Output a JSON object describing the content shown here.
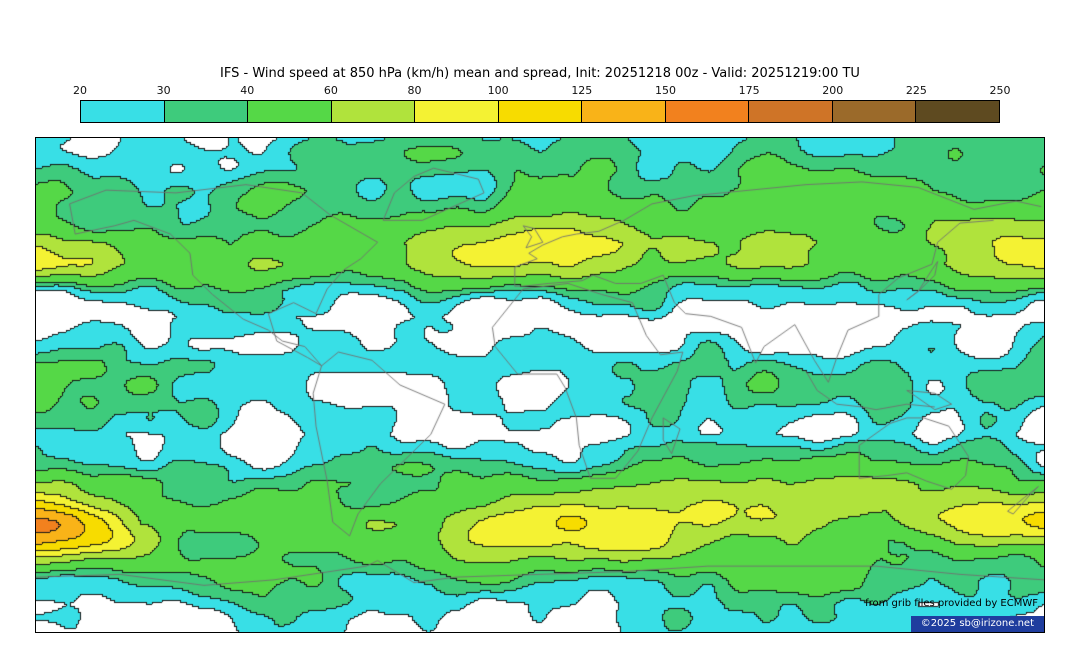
{
  "chart": {
    "title": "IFS - Wind speed at 850 hPa (km/h) mean and spread, Init: 20251218 00z - Valid: 20251219:00 TU"
  },
  "credits": {
    "source": "from grib files provided by ECMWF",
    "copyright": "©2025 sb@irizone.net"
  },
  "chart_data": {
    "type": "heatmap",
    "title": "IFS - Wind speed at 850 hPa (km/h) mean and spread, Init: 20251218 00z - Valid: 20251219:00 TU",
    "model": "IFS",
    "variable": "Wind speed at 850 hPa",
    "units": "km/h",
    "statistic": "mean and spread",
    "init": "20251218 00z",
    "valid": "20251219:00 TU",
    "projection": "equirectangular",
    "legend_position": "top",
    "levels": [
      20,
      30,
      40,
      60,
      80,
      100,
      125,
      150,
      175,
      200,
      225,
      250
    ],
    "colors": [
      "#38dfe6",
      "#3ecb7c",
      "#55d847",
      "#b0e33c",
      "#f4f233",
      "#f7dc00",
      "#f9b318",
      "#f2811e",
      "#cf7427",
      "#9b6a2a",
      "#5e4a20"
    ],
    "below_min_color": "#ffffff",
    "contour_color": "#161616",
    "coastline_color": "#707070",
    "approx_zonal_mean_by_lat": [
      [
        90,
        24
      ],
      [
        76,
        32
      ],
      [
        62,
        42
      ],
      [
        52,
        56
      ],
      [
        44,
        54
      ],
      [
        34,
        26
      ],
      [
        25,
        15
      ],
      [
        16,
        22
      ],
      [
        8,
        30
      ],
      [
        0,
        31
      ],
      [
        -8,
        27
      ],
      [
        -18,
        18
      ],
      [
        -27,
        32
      ],
      [
        -36,
        52
      ],
      [
        -48,
        62
      ],
      [
        -60,
        50
      ],
      [
        -70,
        36
      ],
      [
        -80,
        24
      ],
      [
        -90,
        20
      ]
    ],
    "coastlines": [
      [
        [
          -168,
          66
        ],
        [
          -155,
          71
        ],
        [
          -130,
          70
        ],
        [
          -105,
          73
        ],
        [
          -85,
          70
        ],
        [
          -75,
          62
        ],
        [
          -58,
          52
        ],
        [
          -64,
          46
        ],
        [
          -70,
          42
        ],
        [
          -76,
          35
        ],
        [
          -80,
          26
        ],
        [
          -88,
          30
        ],
        [
          -97,
          26
        ],
        [
          -94,
          16
        ],
        [
          -83,
          10
        ],
        [
          -78,
          7
        ],
        [
          -84,
          14
        ],
        [
          -92,
          16
        ],
        [
          -97,
          20
        ],
        [
          -106,
          24
        ],
        [
          -117,
          33
        ],
        [
          -124,
          40
        ],
        [
          -125,
          48
        ],
        [
          -132,
          55
        ],
        [
          -145,
          60
        ],
        [
          -152,
          58
        ],
        [
          -166,
          55
        ],
        [
          -168,
          66
        ]
      ],
      [
        [
          -78,
          7
        ],
        [
          -72,
          12
        ],
        [
          -60,
          9
        ],
        [
          -50,
          0
        ],
        [
          -34,
          -7
        ],
        [
          -39,
          -18
        ],
        [
          -48,
          -27
        ],
        [
          -57,
          -36
        ],
        [
          -65,
          -47
        ],
        [
          -68,
          -55
        ],
        [
          -74,
          -50
        ],
        [
          -76,
          -35
        ],
        [
          -80,
          -15
        ],
        [
          -81,
          -3
        ],
        [
          -78,
          7
        ]
      ],
      [
        [
          -56,
          60
        ],
        [
          -52,
          70
        ],
        [
          -45,
          76
        ],
        [
          -38,
          79
        ],
        [
          -22,
          75
        ],
        [
          -20,
          70
        ],
        [
          -42,
          60
        ],
        [
          -56,
          60
        ]
      ],
      [
        [
          -9,
          36
        ],
        [
          -9,
          43
        ],
        [
          -1,
          46
        ],
        [
          -4,
          48
        ],
        [
          1,
          51
        ],
        [
          8,
          54
        ],
        [
          13,
          55
        ],
        [
          21,
          56
        ],
        [
          30,
          60
        ],
        [
          40,
          66
        ],
        [
          55,
          69
        ],
        [
          75,
          71
        ],
        [
          95,
          73
        ],
        [
          115,
          74
        ],
        [
          135,
          72
        ],
        [
          155,
          64
        ],
        [
          170,
          67
        ],
        [
          179,
          65
        ]
      ],
      [
        [
          162,
          60
        ],
        [
          150,
          59
        ],
        [
          142,
          52
        ],
        [
          140,
          44
        ],
        [
          128,
          39
        ],
        [
          121,
          33
        ],
        [
          121,
          25
        ],
        [
          110,
          20
        ],
        [
          106,
          10
        ],
        [
          103,
          1
        ],
        [
          98,
          9
        ],
        [
          91,
          22
        ],
        [
          80,
          14
        ],
        [
          77,
          8
        ],
        [
          72,
          21
        ],
        [
          61,
          25
        ],
        [
          52,
          26
        ],
        [
          48,
          30
        ],
        [
          44,
          40
        ],
        [
          36,
          37
        ],
        [
          27,
          37
        ],
        [
          19,
          40
        ],
        [
          15,
          38
        ],
        [
          3,
          37
        ],
        [
          -6,
          36
        ],
        [
          -9,
          36
        ]
      ],
      [
        [
          -6,
          35
        ],
        [
          -17,
          21
        ],
        [
          -16,
          14
        ],
        [
          -8,
          4
        ],
        [
          6,
          4
        ],
        [
          9,
          -1
        ],
        [
          13,
          -12
        ],
        [
          14,
          -22
        ],
        [
          18,
          -34
        ],
        [
          27,
          -34
        ],
        [
          35,
          -24
        ],
        [
          40,
          -12
        ],
        [
          49,
          5
        ],
        [
          51,
          12
        ],
        [
          43,
          11
        ],
        [
          38,
          18
        ],
        [
          33,
          30
        ],
        [
          22,
          33
        ],
        [
          10,
          37
        ],
        [
          -6,
          35
        ]
      ],
      [
        [
          114,
          -22
        ],
        [
          114,
          -34
        ],
        [
          124,
          -33
        ],
        [
          131,
          -32
        ],
        [
          138,
          -35
        ],
        [
          147,
          -38
        ],
        [
          152,
          -33
        ],
        [
          153,
          -26
        ],
        [
          146,
          -15
        ],
        [
          137,
          -12
        ],
        [
          131,
          -12
        ],
        [
          125,
          -14
        ],
        [
          114,
          -22
        ]
      ],
      [
        [
          44,
          -12
        ],
        [
          50,
          -16
        ],
        [
          47,
          -25
        ],
        [
          44,
          -20
        ],
        [
          44,
          -12
        ]
      ],
      [
        [
          131,
          31
        ],
        [
          136,
          35
        ],
        [
          141,
          40
        ],
        [
          142,
          45
        ],
        [
          140,
          42
        ],
        [
          135,
          34
        ],
        [
          131,
          31
        ]
      ],
      [
        [
          -5,
          50
        ],
        [
          -3,
          54
        ],
        [
          -6,
          58
        ],
        [
          -2,
          57
        ],
        [
          1,
          52
        ],
        [
          -5,
          50
        ]
      ],
      [
        [
          167,
          -46
        ],
        [
          173,
          -41
        ],
        [
          178,
          -37
        ],
        [
          175,
          -40
        ],
        [
          169,
          -47
        ],
        [
          167,
          -46
        ]
      ],
      [
        [
          95,
          5
        ],
        [
          99,
          -2
        ],
        [
          106,
          -7
        ],
        [
          115,
          -8
        ],
        [
          120,
          -9
        ],
        [
          131,
          -7
        ],
        [
          141,
          -8
        ]
      ],
      [
        [
          131,
          -2
        ],
        [
          141,
          -3
        ],
        [
          147,
          -7
        ],
        [
          141,
          -9
        ],
        [
          134,
          -4
        ],
        [
          131,
          -2
        ]
      ],
      [
        [
          -180,
          -70
        ],
        [
          -150,
          -69
        ],
        [
          -120,
          -73
        ],
        [
          -95,
          -71
        ],
        [
          -62,
          -66
        ],
        [
          -58,
          -64
        ],
        [
          -45,
          -72
        ],
        [
          -30,
          -70
        ],
        [
          0,
          -69
        ],
        [
          30,
          -68
        ],
        [
          60,
          -66
        ],
        [
          90,
          -66
        ],
        [
          120,
          -66
        ],
        [
          150,
          -69
        ],
        [
          180,
          -71
        ]
      ]
    ]
  }
}
